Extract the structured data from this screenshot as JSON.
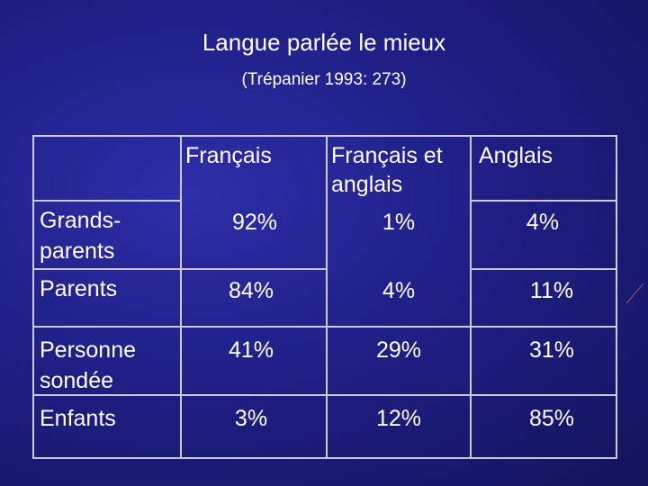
{
  "title": "Langue parlée le mieux",
  "subtitle": "(Trépanier 1993: 273)",
  "table": {
    "headers": [
      "",
      "Français",
      "Français et anglais",
      "Anglais"
    ],
    "header_lines": {
      "col1": "Français",
      "col2_line1": "Français et",
      "col2_line2": "anglais",
      "col3": "Anglais"
    },
    "rows": [
      {
        "label": [
          "Grands-",
          "parents"
        ],
        "values": [
          "92%",
          "1%",
          "4%"
        ]
      },
      {
        "label": [
          "Parents"
        ],
        "values": [
          "84%",
          "4%",
          "11%"
        ]
      },
      {
        "label": [
          "Personne",
          "sondée"
        ],
        "values": [
          "41%",
          "29%",
          "31%"
        ]
      },
      {
        "label": [
          "Enfants"
        ],
        "values": [
          "3%",
          "12%",
          "85%"
        ]
      }
    ]
  }
}
